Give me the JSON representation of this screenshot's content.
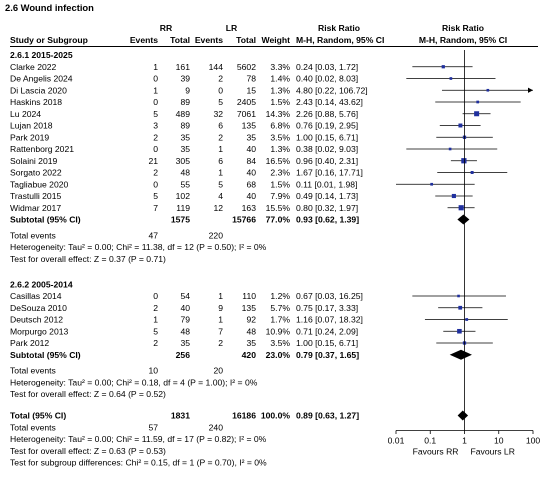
{
  "chart_data": {
    "type": "forest",
    "title": "2.6 Wound infection",
    "header": {
      "group_rr": "RR",
      "group_lr": "LR",
      "col_study": "Study or Subgroup",
      "col_events": "Events",
      "col_total": "Total",
      "col_weight": "Weight",
      "col_rr_label": "Risk Ratio",
      "col_rr_method": "M-H, Random, 95% CI",
      "col_plot_label": "Risk Ratio",
      "col_plot_method": "M-H, Random, 95% CI"
    },
    "subgroups": [
      {
        "label": "2.6.1 2015-2025",
        "studies": [
          {
            "name": "Clarke 2022",
            "rr_events": "1",
            "rr_total": "161",
            "lr_events": "144",
            "lr_total": "5602",
            "weight": "3.3%",
            "ci_text": "0.24 [0.03, 1.72]",
            "rr": 0.24,
            "lo": 0.03,
            "hi": 1.72
          },
          {
            "name": "De Angelis 2024",
            "rr_events": "0",
            "rr_total": "39",
            "lr_events": "2",
            "lr_total": "78",
            "weight": "1.4%",
            "ci_text": "0.40 [0.02, 8.03]",
            "rr": 0.4,
            "lo": 0.02,
            "hi": 8.03
          },
          {
            "name": "Di Lascia 2020",
            "rr_events": "1",
            "rr_total": "9",
            "lr_events": "0",
            "lr_total": "15",
            "weight": "1.3%",
            "ci_text": "4.80 [0.22, 106.72]",
            "rr": 4.8,
            "lo": 0.22,
            "hi": 106.72
          },
          {
            "name": "Haskins 2018",
            "rr_events": "0",
            "rr_total": "89",
            "lr_events": "5",
            "lr_total": "2405",
            "weight": "1.5%",
            "ci_text": "2.43 [0.14, 43.62]",
            "rr": 2.43,
            "lo": 0.14,
            "hi": 43.62
          },
          {
            "name": "Lu 2024",
            "rr_events": "5",
            "rr_total": "489",
            "lr_events": "32",
            "lr_total": "7061",
            "weight": "14.3%",
            "ci_text": "2.26 [0.88, 5.76]",
            "rr": 2.26,
            "lo": 0.88,
            "hi": 5.76
          },
          {
            "name": "Lujan 2018",
            "rr_events": "3",
            "rr_total": "89",
            "lr_events": "6",
            "lr_total": "135",
            "weight": "6.8%",
            "ci_text": "0.76 [0.19, 2.95]",
            "rr": 0.76,
            "lo": 0.19,
            "hi": 2.95
          },
          {
            "name": "Park 2019",
            "rr_events": "2",
            "rr_total": "35",
            "lr_events": "2",
            "lr_total": "35",
            "weight": "3.5%",
            "ci_text": "1.00 [0.15, 6.71]",
            "rr": 1.0,
            "lo": 0.15,
            "hi": 6.71
          },
          {
            "name": "Rattenborg 2021",
            "rr_events": "0",
            "rr_total": "35",
            "lr_events": "1",
            "lr_total": "40",
            "weight": "1.3%",
            "ci_text": "0.38 [0.02, 9.03]",
            "rr": 0.38,
            "lo": 0.02,
            "hi": 9.03
          },
          {
            "name": "Solaini 2019",
            "rr_events": "21",
            "rr_total": "305",
            "lr_events": "6",
            "lr_total": "84",
            "weight": "16.5%",
            "ci_text": "0.96 [0.40, 2.31]",
            "rr": 0.96,
            "lo": 0.4,
            "hi": 2.31
          },
          {
            "name": "Sorgato 2022",
            "rr_events": "2",
            "rr_total": "48",
            "lr_events": "1",
            "lr_total": "40",
            "weight": "2.3%",
            "ci_text": "1.67 [0.16, 17.71]",
            "rr": 1.67,
            "lo": 0.16,
            "hi": 17.71
          },
          {
            "name": "Tagliabue 2020",
            "rr_events": "0",
            "rr_total": "55",
            "lr_events": "5",
            "lr_total": "68",
            "weight": "1.5%",
            "ci_text": "0.11 [0.01, 1.98]",
            "rr": 0.11,
            "lo": 0.01,
            "hi": 1.98
          },
          {
            "name": "Trastulli 2015",
            "rr_events": "5",
            "rr_total": "102",
            "lr_events": "4",
            "lr_total": "40",
            "weight": "7.9%",
            "ci_text": "0.49 [0.14, 1.73]",
            "rr": 0.49,
            "lo": 0.14,
            "hi": 1.73
          },
          {
            "name": "Widmar 2017",
            "rr_events": "7",
            "rr_total": "119",
            "lr_events": "12",
            "lr_total": "163",
            "weight": "15.5%",
            "ci_text": "0.80 [0.32, 1.97]",
            "rr": 0.8,
            "lo": 0.32,
            "hi": 1.97
          }
        ],
        "subtotal": {
          "label": "Subtotal (95% CI)",
          "rr_total": "1575",
          "lr_total": "15766",
          "weight": "77.0%",
          "ci_text": "0.93 [0.62, 1.39]",
          "rr": 0.93,
          "lo": 0.62,
          "hi": 1.39
        },
        "total_events": {
          "label": "Total events",
          "rr": "47",
          "lr": "220"
        },
        "heterogeneity": "Heterogeneity: Tau² = 0.00; Chi² = 11.38, df = 12 (P = 0.50); I² = 0%",
        "overall_effect": "Test for overall effect: Z = 0.37 (P = 0.71)"
      },
      {
        "label": "2.6.2 2005-2014",
        "studies": [
          {
            "name": "Casillas 2014",
            "rr_events": "0",
            "rr_total": "54",
            "lr_events": "1",
            "lr_total": "110",
            "weight": "1.2%",
            "ci_text": "0.67 [0.03, 16.25]",
            "rr": 0.67,
            "lo": 0.03,
            "hi": 16.25
          },
          {
            "name": "DeSouza 2010",
            "rr_events": "2",
            "rr_total": "40",
            "lr_events": "9",
            "lr_total": "135",
            "weight": "5.7%",
            "ci_text": "0.75 [0.17, 3.33]",
            "rr": 0.75,
            "lo": 0.17,
            "hi": 3.33
          },
          {
            "name": "Deutsch 2012",
            "rr_events": "1",
            "rr_total": "79",
            "lr_events": "1",
            "lr_total": "92",
            "weight": "1.7%",
            "ci_text": "1.16 [0.07, 18.32]",
            "rr": 1.16,
            "lo": 0.07,
            "hi": 18.32
          },
          {
            "name": "Morpurgo 2013",
            "rr_events": "5",
            "rr_total": "48",
            "lr_events": "7",
            "lr_total": "48",
            "weight": "10.9%",
            "ci_text": "0.71 [0.24, 2.09]",
            "rr": 0.71,
            "lo": 0.24,
            "hi": 2.09
          },
          {
            "name": "Park 2012",
            "rr_events": "2",
            "rr_total": "35",
            "lr_events": "2",
            "lr_total": "35",
            "weight": "3.5%",
            "ci_text": "1.00 [0.15, 6.71]",
            "rr": 1.0,
            "lo": 0.15,
            "hi": 6.71
          }
        ],
        "subtotal": {
          "label": "Subtotal (95% CI)",
          "rr_total": "256",
          "lr_total": "420",
          "weight": "23.0%",
          "ci_text": "0.79 [0.37, 1.65]",
          "rr": 0.79,
          "lo": 0.37,
          "hi": 1.65
        },
        "total_events": {
          "label": "Total events",
          "rr": "10",
          "lr": "20"
        },
        "heterogeneity": "Heterogeneity: Tau² = 0.00; Chi² = 0.18, df = 4 (P = 1.00); I² = 0%",
        "overall_effect": "Test for overall effect: Z = 0.64 (P = 0.52)"
      }
    ],
    "overall": {
      "label": "Total (95% CI)",
      "rr_total": "1831",
      "lr_total": "16186",
      "weight": "100.0%",
      "ci_text": "0.89 [0.63, 1.27]",
      "rr": 0.89,
      "lo": 0.63,
      "hi": 1.27,
      "total_events": {
        "label": "Total events",
        "rr": "57",
        "lr": "240"
      },
      "heterogeneity": "Heterogeneity: Tau² = 0.00; Chi² = 11.59, df = 17 (P = 0.82); I² = 0%",
      "overall_effect": "Test for overall effect: Z = 0.63 (P = 0.53)",
      "subgroup_diff": "Test for subgroup differences: Chi² = 0.15, df = 1 (P = 0.70), I² = 0%"
    },
    "axis": {
      "scale": "log",
      "xlim": [
        0.01,
        100
      ],
      "ticks": [
        0.01,
        0.1,
        1,
        10,
        100
      ],
      "tick_labels": [
        "0.01",
        "0.1",
        "1",
        "10",
        "100"
      ],
      "null_value": 1,
      "favours_left": "Favours RR",
      "favours_right": "Favours LR"
    },
    "marker_color": "#1f2f9e"
  }
}
